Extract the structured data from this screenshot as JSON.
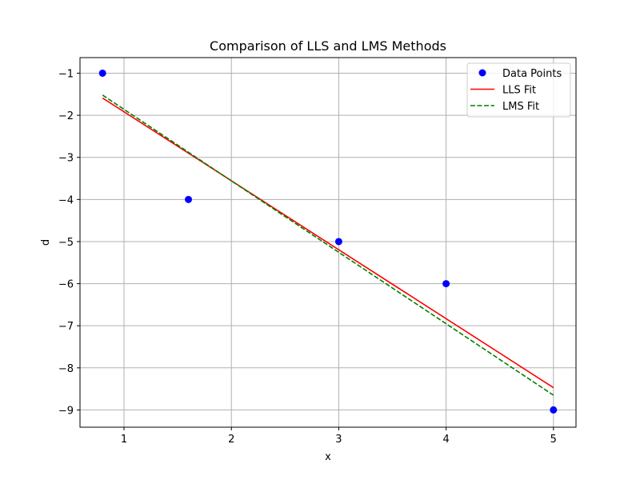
{
  "chart_data": {
    "type": "scatter",
    "title": "Comparison of LLS and LMS Methods",
    "xlabel": "x",
    "ylabel": "d",
    "xlim": [
      0.59,
      5.21
    ],
    "ylim": [
      -9.41,
      -0.63
    ],
    "xticks": [
      1,
      2,
      3,
      4,
      5
    ],
    "yticks": [
      -1,
      -2,
      -3,
      -4,
      -5,
      -6,
      -7,
      -8,
      -9
    ],
    "xtick_labels": [
      "1",
      "2",
      "3",
      "4",
      "5"
    ],
    "ytick_labels": [
      "−1",
      "−2",
      "−3",
      "−4",
      "−5",
      "−6",
      "−7",
      "−8",
      "−9"
    ],
    "grid": true,
    "legend_position": "top-right",
    "series": [
      {
        "name": "Data Points",
        "kind": "scatter",
        "color": "#0000ff",
        "x": [
          0.8,
          1.6,
          3.0,
          4.0,
          5.0
        ],
        "y": [
          -1,
          -4,
          -5,
          -6,
          -9
        ]
      },
      {
        "name": "LLS Fit",
        "kind": "line",
        "style": "solid",
        "color": "#ff0000",
        "x": [
          0.8,
          5.0
        ],
        "y": [
          -1.59,
          -8.47
        ]
      },
      {
        "name": "LMS Fit",
        "kind": "line",
        "style": "dashed",
        "color": "#008000",
        "x": [
          0.8,
          5.0
        ],
        "y": [
          -1.52,
          -8.65
        ]
      }
    ]
  }
}
